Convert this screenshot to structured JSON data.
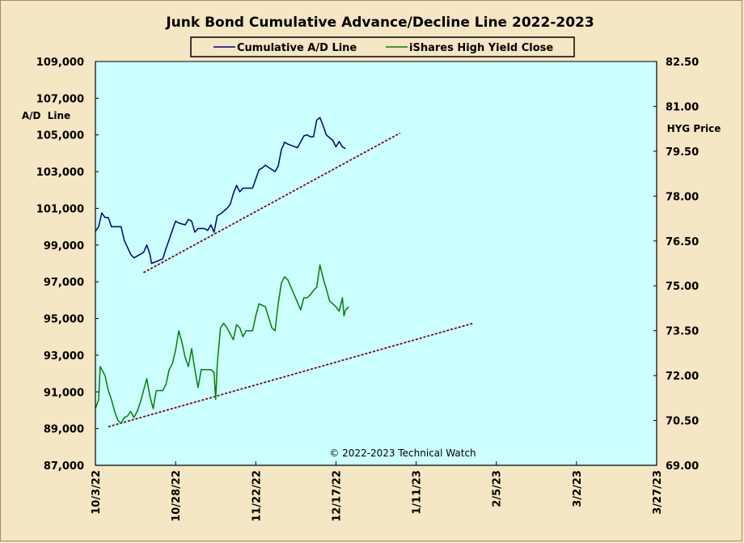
{
  "chart_data": {
    "type": "line",
    "title": "Junk Bond Cumulative  Advance/Decline  Line 2022-2023",
    "left_axis_label": [
      "A/D",
      "Line"
    ],
    "right_axis_label": "HYG Price",
    "copyright": "© 2022-2023  Technical  Watch",
    "colors": {
      "background": "#f5e6c4",
      "plot_area": "#ccffff",
      "ad_line": "#000080",
      "hyg_line": "#008000",
      "trendline": "#800020"
    },
    "x_ticks": [
      "10/3/22",
      "10/28/22",
      "11/22/22",
      "12/17/22",
      "1/11/23",
      "2/5/23",
      "3/2/23",
      "3/27/23"
    ],
    "x_range_days": [
      0,
      175
    ],
    "left_ticks": [
      "87,000",
      "89,000",
      "91,000",
      "93,000",
      "95,000",
      "97,000",
      "99,000",
      "101,000",
      "103,000",
      "105,000",
      "107,000",
      "109,000"
    ],
    "left_range": [
      87000,
      109000
    ],
    "right_ticks": [
      "69.00",
      "70.50",
      "72.00",
      "73.50",
      "75.00",
      "76.50",
      "78.00",
      "79.50",
      "81.00",
      "82.50"
    ],
    "right_range": [
      69.0,
      82.5
    ],
    "grid": false,
    "legend_position": "top-center",
    "series": [
      {
        "name": "Cumulative A/D Line",
        "axis": "left",
        "points": [
          [
            0,
            99750
          ],
          [
            1,
            100000
          ],
          [
            2,
            100750
          ],
          [
            3,
            100500
          ],
          [
            4,
            100500
          ],
          [
            5,
            100000
          ],
          [
            8,
            100000
          ],
          [
            9,
            99250
          ],
          [
            11,
            98500
          ],
          [
            12,
            98300
          ],
          [
            14,
            98500
          ],
          [
            15,
            98600
          ],
          [
            16,
            99000
          ],
          [
            17,
            98500
          ],
          [
            17.5,
            98000
          ],
          [
            19,
            98100
          ],
          [
            21,
            98250
          ],
          [
            22,
            98800
          ],
          [
            23,
            99300
          ],
          [
            25,
            100300
          ],
          [
            26,
            100200
          ],
          [
            28,
            100100
          ],
          [
            29,
            100400
          ],
          [
            30,
            100300
          ],
          [
            31,
            99700
          ],
          [
            32,
            99900
          ],
          [
            34,
            99900
          ],
          [
            35,
            99800
          ],
          [
            36,
            100100
          ],
          [
            37,
            99700
          ],
          [
            38,
            100600
          ],
          [
            39,
            100700
          ],
          [
            41,
            101000
          ],
          [
            42,
            101200
          ],
          [
            43,
            101800
          ],
          [
            44,
            102250
          ],
          [
            45,
            101900
          ],
          [
            46,
            102100
          ],
          [
            49,
            102100
          ],
          [
            50,
            102600
          ],
          [
            51,
            103100
          ],
          [
            52,
            103200
          ],
          [
            53,
            103350
          ],
          [
            56,
            103000
          ],
          [
            57,
            103300
          ],
          [
            58,
            104200
          ],
          [
            59,
            104600
          ],
          [
            60,
            104500
          ],
          [
            63,
            104300
          ],
          [
            65,
            104950
          ],
          [
            66,
            105000
          ],
          [
            67,
            104900
          ],
          [
            68,
            104900
          ],
          [
            69,
            105800
          ],
          [
            70,
            105950
          ],
          [
            71,
            105500
          ],
          [
            72,
            105000
          ],
          [
            74,
            104700
          ],
          [
            75,
            104350
          ],
          [
            76,
            104650
          ],
          [
            77,
            104350
          ],
          [
            78,
            104250
          ]
        ]
      },
      {
        "name": "iShares High Yield Close",
        "axis": "right",
        "points": [
          [
            0,
            70.9
          ],
          [
            1,
            71.2
          ],
          [
            1.5,
            72.3
          ],
          [
            2,
            72.2
          ],
          [
            3,
            72.0
          ],
          [
            4,
            71.5
          ],
          [
            5,
            71.2
          ],
          [
            6,
            70.8
          ],
          [
            7,
            70.5
          ],
          [
            8,
            70.4
          ],
          [
            9,
            70.6
          ],
          [
            10,
            70.65
          ],
          [
            11,
            70.8
          ],
          [
            12,
            70.6
          ],
          [
            13,
            70.8
          ],
          [
            14,
            71.1
          ],
          [
            15,
            71.5
          ],
          [
            16,
            71.9
          ],
          [
            17,
            71.3
          ],
          [
            18,
            70.9
          ],
          [
            19,
            71.5
          ],
          [
            20,
            71.5
          ],
          [
            21,
            71.5
          ],
          [
            22,
            71.7
          ],
          [
            23,
            72.2
          ],
          [
            24,
            72.4
          ],
          [
            25,
            72.85
          ],
          [
            26,
            73.5
          ],
          [
            27,
            73.1
          ],
          [
            28,
            72.6
          ],
          [
            29,
            72.3
          ],
          [
            30,
            72.9
          ],
          [
            31,
            72.2
          ],
          [
            32,
            71.6
          ],
          [
            33,
            72.2
          ],
          [
            35,
            72.2
          ],
          [
            36,
            72.2
          ],
          [
            37,
            72.1
          ],
          [
            37.5,
            71.2
          ],
          [
            38,
            72.4
          ],
          [
            39,
            73.6
          ],
          [
            40,
            73.75
          ],
          [
            41,
            73.6
          ],
          [
            43,
            73.2
          ],
          [
            44,
            73.7
          ],
          [
            45,
            73.6
          ],
          [
            46,
            73.3
          ],
          [
            47,
            73.5
          ],
          [
            49,
            73.5
          ],
          [
            50,
            74.0
          ],
          [
            51,
            74.4
          ],
          [
            53,
            74.3
          ],
          [
            54,
            73.95
          ],
          [
            55,
            73.6
          ],
          [
            56,
            73.5
          ],
          [
            57,
            74.4
          ],
          [
            58,
            75.1
          ],
          [
            59,
            75.3
          ],
          [
            60,
            75.2
          ],
          [
            61,
            74.95
          ],
          [
            62,
            74.7
          ],
          [
            63,
            74.45
          ],
          [
            64,
            74.2
          ],
          [
            65,
            74.6
          ],
          [
            66,
            74.6
          ],
          [
            67,
            74.7
          ],
          [
            68,
            74.85
          ],
          [
            69,
            74.95
          ],
          [
            70,
            75.7
          ],
          [
            71,
            75.25
          ],
          [
            72,
            74.9
          ],
          [
            73,
            74.5
          ],
          [
            75,
            74.3
          ],
          [
            76,
            74.15
          ],
          [
            77,
            74.6
          ],
          [
            77.5,
            74.0
          ],
          [
            78,
            74.2
          ],
          [
            79,
            74.3
          ]
        ]
      }
    ],
    "trendlines": [
      {
        "axis": "left",
        "from": [
          15,
          97500
        ],
        "to": [
          95,
          105100
        ]
      },
      {
        "axis": "left",
        "from": [
          4,
          89100
        ],
        "to": [
          118,
          94750
        ]
      }
    ]
  }
}
